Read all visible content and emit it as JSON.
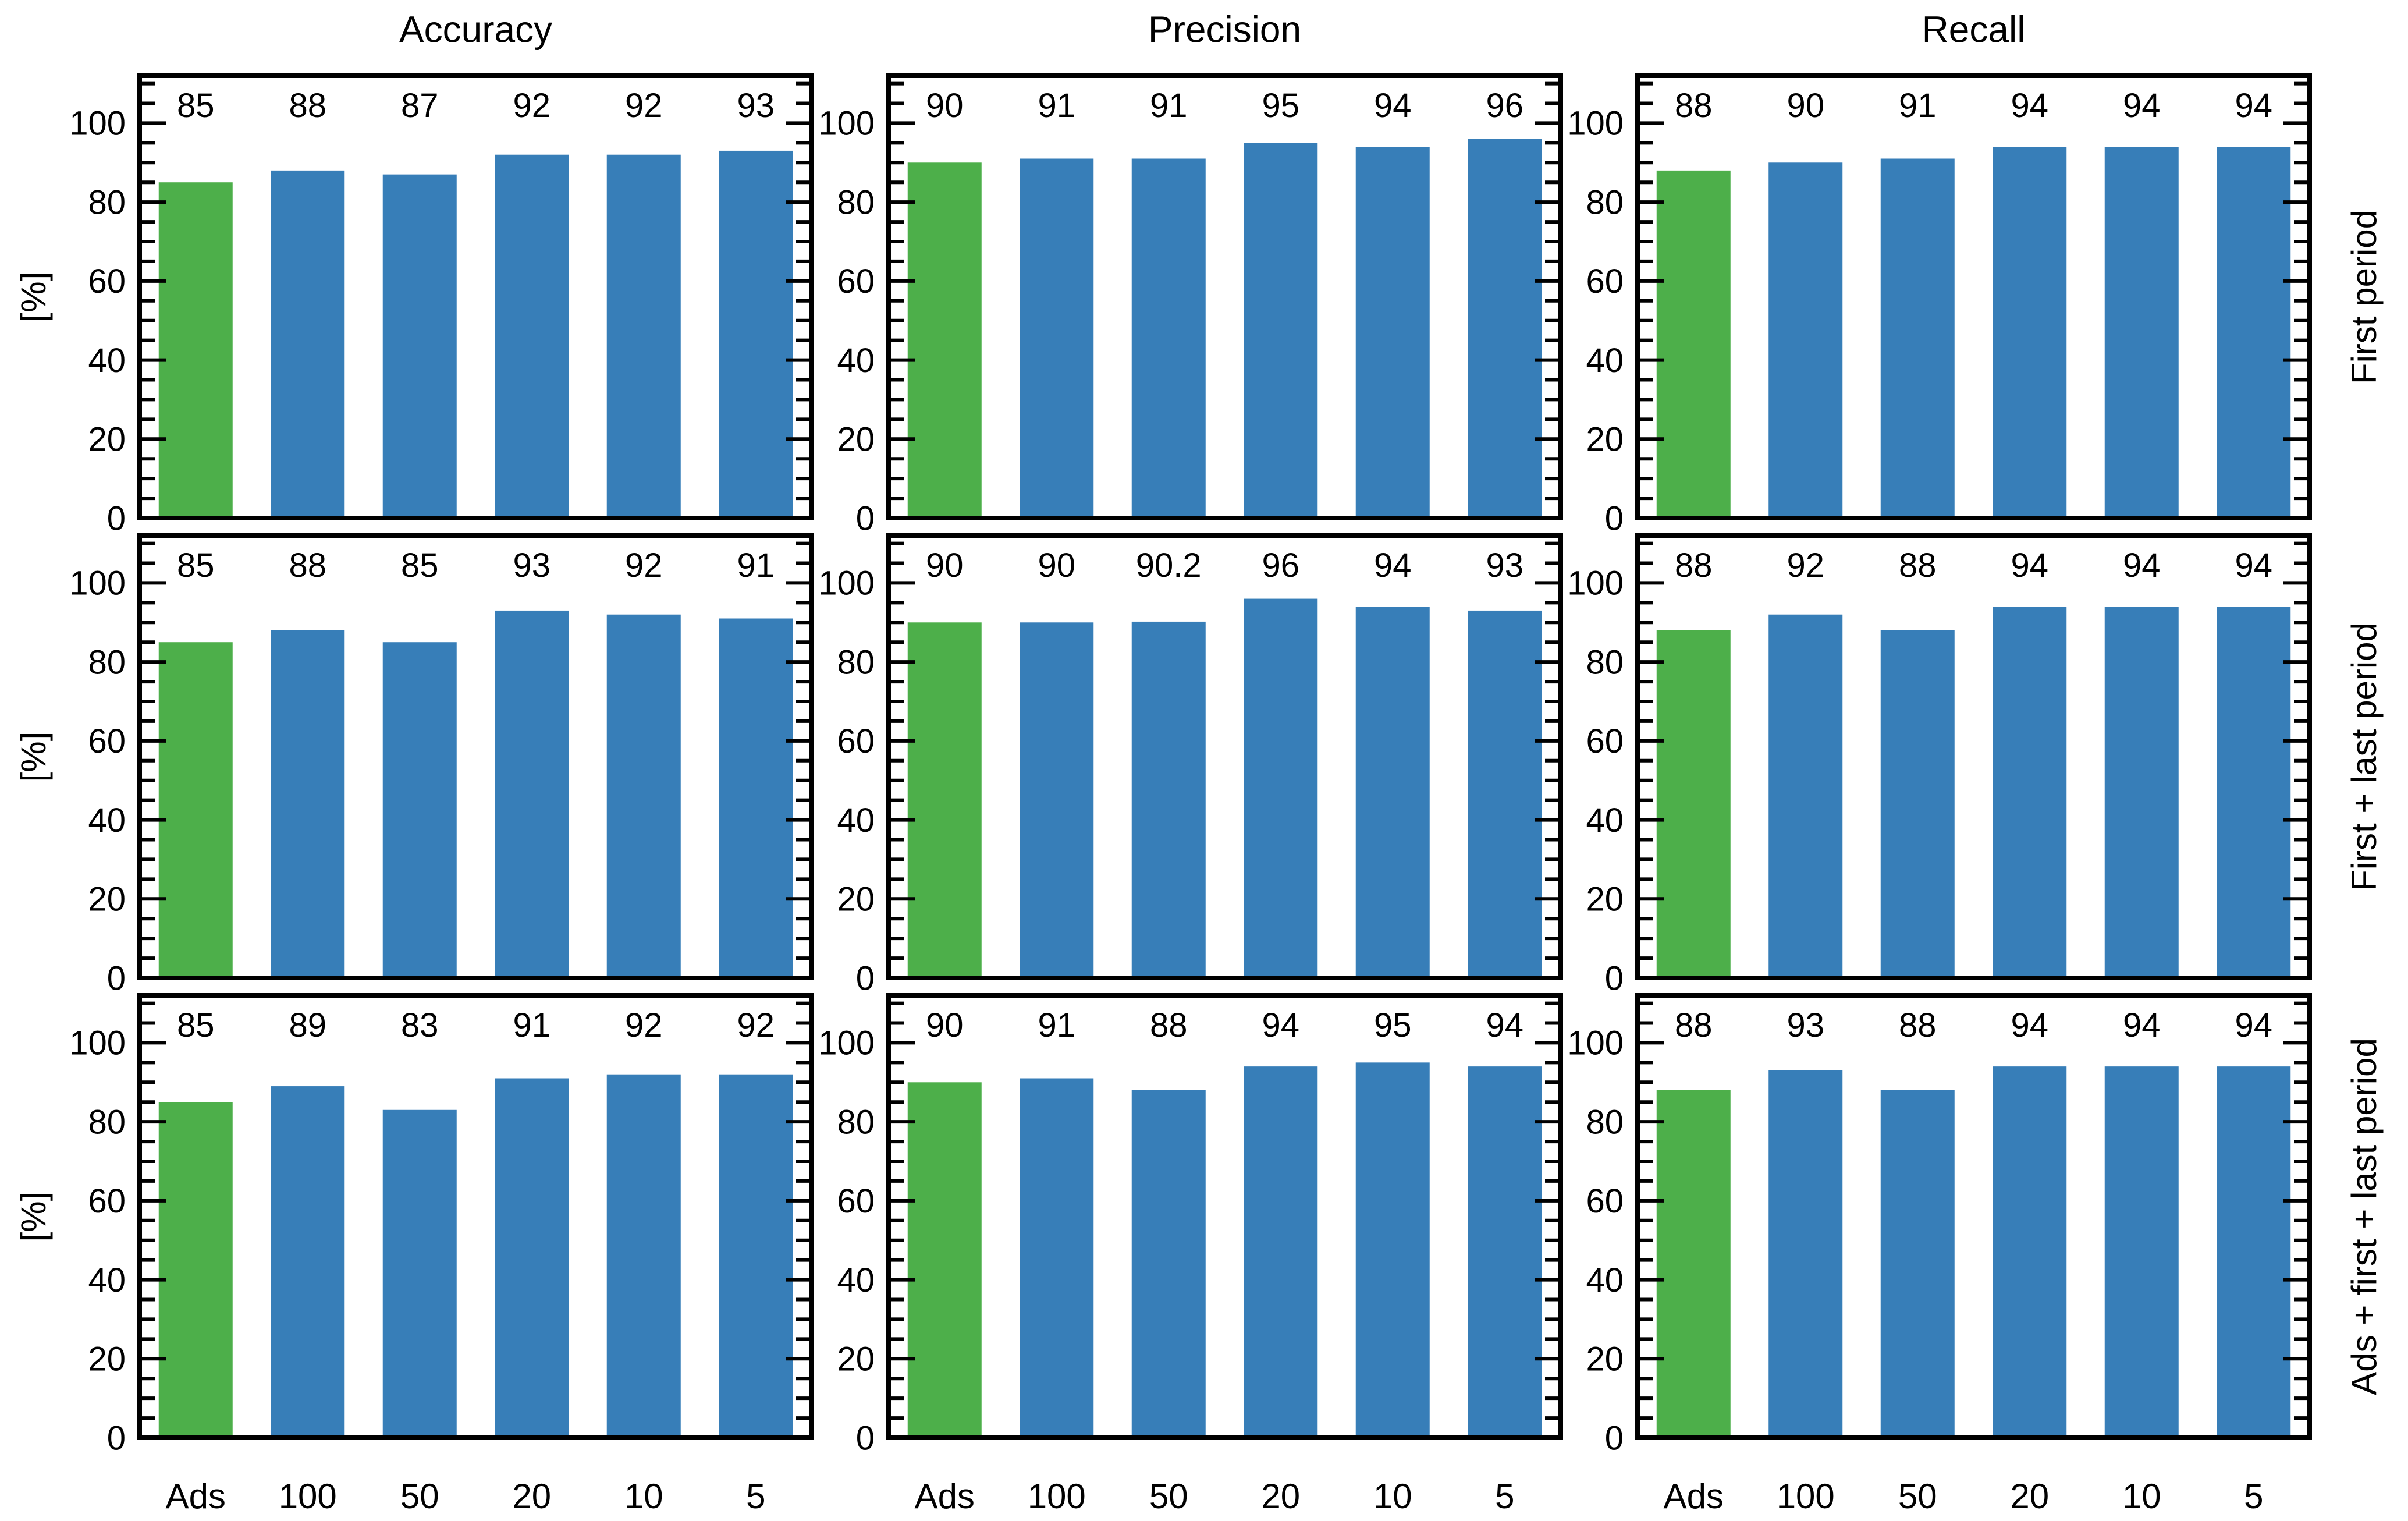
{
  "figure": {
    "background": "#ffffff",
    "ylabel": "[%]",
    "col_titles": [
      "Accuracy",
      "Precision",
      "Recall"
    ],
    "row_titles": [
      "First period",
      "First + last period",
      "Ads + first + last period"
    ],
    "categories": [
      "Ads",
      "100",
      "50",
      "20",
      "10",
      "5"
    ],
    "ytick_labels": [
      "0",
      "20",
      "40",
      "60",
      "80",
      "100"
    ],
    "colors": {
      "ads_bar": "#4daf4a",
      "default_bar": "#377eb8",
      "axis": "#000000"
    }
  },
  "chart_data": [
    {
      "type": "bar",
      "row": "First period",
      "metric": "Accuracy",
      "categories": [
        "Ads",
        "100",
        "50",
        "20",
        "10",
        "5"
      ],
      "values": [
        85,
        88,
        87,
        92,
        92,
        93
      ],
      "labels": [
        "85",
        "88",
        "87",
        "92",
        "92",
        "93"
      ],
      "ylim": [
        0,
        112
      ],
      "yticks": [
        0,
        20,
        40,
        60,
        80,
        100
      ],
      "minor_tick_step": 5,
      "grid": false
    },
    {
      "type": "bar",
      "row": "First period",
      "metric": "Precision",
      "categories": [
        "Ads",
        "100",
        "50",
        "20",
        "10",
        "5"
      ],
      "values": [
        90,
        91,
        91,
        95,
        94,
        96
      ],
      "labels": [
        "90",
        "91",
        "91",
        "95",
        "94",
        "96"
      ],
      "ylim": [
        0,
        112
      ],
      "yticks": [
        0,
        20,
        40,
        60,
        80,
        100
      ],
      "minor_tick_step": 5,
      "grid": false
    },
    {
      "type": "bar",
      "row": "First period",
      "metric": "Recall",
      "categories": [
        "Ads",
        "100",
        "50",
        "20",
        "10",
        "5"
      ],
      "values": [
        88,
        90,
        91,
        94,
        94,
        94
      ],
      "labels": [
        "88",
        "90",
        "91",
        "94",
        "94",
        "94"
      ],
      "ylim": [
        0,
        112
      ],
      "yticks": [
        0,
        20,
        40,
        60,
        80,
        100
      ],
      "minor_tick_step": 5,
      "grid": false
    },
    {
      "type": "bar",
      "row": "First + last period",
      "metric": "Accuracy",
      "categories": [
        "Ads",
        "100",
        "50",
        "20",
        "10",
        "5"
      ],
      "values": [
        85,
        88,
        85,
        93,
        92,
        91
      ],
      "labels": [
        "85",
        "88",
        "85",
        "93",
        "92",
        "91"
      ],
      "ylim": [
        0,
        112
      ],
      "yticks": [
        0,
        20,
        40,
        60,
        80,
        100
      ],
      "minor_tick_step": 5,
      "grid": false
    },
    {
      "type": "bar",
      "row": "First + last period",
      "metric": "Precision",
      "categories": [
        "Ads",
        "100",
        "50",
        "20",
        "10",
        "5"
      ],
      "values": [
        90,
        90,
        90.2,
        96,
        94,
        93
      ],
      "labels": [
        "90",
        "90",
        "90.2",
        "96",
        "94",
        "93"
      ],
      "ylim": [
        0,
        112
      ],
      "yticks": [
        0,
        20,
        40,
        60,
        80,
        100
      ],
      "minor_tick_step": 5,
      "grid": false
    },
    {
      "type": "bar",
      "row": "First + last period",
      "metric": "Recall",
      "categories": [
        "Ads",
        "100",
        "50",
        "20",
        "10",
        "5"
      ],
      "values": [
        88,
        92,
        88,
        94,
        94,
        94
      ],
      "labels": [
        "88",
        "92",
        "88",
        "94",
        "94",
        "94"
      ],
      "ylim": [
        0,
        112
      ],
      "yticks": [
        0,
        20,
        40,
        60,
        80,
        100
      ],
      "minor_tick_step": 5,
      "grid": false
    },
    {
      "type": "bar",
      "row": "Ads + first + last period",
      "metric": "Accuracy",
      "categories": [
        "Ads",
        "100",
        "50",
        "20",
        "10",
        "5"
      ],
      "values": [
        85,
        89,
        83,
        91,
        92,
        92
      ],
      "labels": [
        "85",
        "89",
        "83",
        "91",
        "92",
        "92"
      ],
      "ylim": [
        0,
        112
      ],
      "yticks": [
        0,
        20,
        40,
        60,
        80,
        100
      ],
      "minor_tick_step": 5,
      "grid": false
    },
    {
      "type": "bar",
      "row": "Ads + first + last period",
      "metric": "Precision",
      "categories": [
        "Ads",
        "100",
        "50",
        "20",
        "10",
        "5"
      ],
      "values": [
        90,
        91,
        88,
        94,
        95,
        94
      ],
      "labels": [
        "90",
        "91",
        "88",
        "94",
        "95",
        "94"
      ],
      "ylim": [
        0,
        112
      ],
      "yticks": [
        0,
        20,
        40,
        60,
        80,
        100
      ],
      "minor_tick_step": 5,
      "grid": false
    },
    {
      "type": "bar",
      "row": "Ads + first + last period",
      "metric": "Recall",
      "categories": [
        "Ads",
        "100",
        "50",
        "20",
        "10",
        "5"
      ],
      "values": [
        88,
        93,
        88,
        94,
        94,
        94
      ],
      "labels": [
        "88",
        "93",
        "88",
        "94",
        "94",
        "94"
      ],
      "ylim": [
        0,
        112
      ],
      "yticks": [
        0,
        20,
        40,
        60,
        80,
        100
      ],
      "minor_tick_step": 5,
      "grid": false
    }
  ]
}
